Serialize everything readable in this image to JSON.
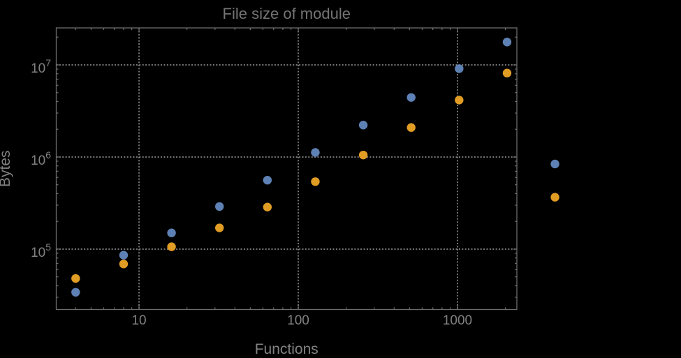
{
  "title": "File size of module",
  "colors": {
    "background": "#000000",
    "frame": "#6d6d6d",
    "grid": "#888888",
    "tick_text": "#818181",
    "title_text": "#747474",
    "series_blue": "#5e81b5",
    "series_orange": "#e19c24"
  },
  "chart_data": {
    "type": "scatter",
    "title": "File size of module",
    "xlabel": "Functions",
    "ylabel": "Bytes",
    "x_scale": "log",
    "y_scale": "log",
    "xlim": [
      3.02,
      2360
    ],
    "ylim": [
      22100,
      25200000
    ],
    "grid": true,
    "grid_style": "dotted",
    "legend": "none",
    "marker": "filled-circle",
    "x_major_ticks": [
      10,
      100,
      1000
    ],
    "x_major_tick_labels": [
      "10",
      "100",
      "1000"
    ],
    "y_major_ticks": [
      100000,
      1000000,
      10000000
    ],
    "y_major_tick_labels": [
      {
        "base": "10",
        "exponent": "5"
      },
      {
        "base": "10",
        "exponent": "6"
      },
      {
        "base": "10",
        "exponent": "7"
      }
    ],
    "x": [
      4,
      8,
      16,
      32,
      64,
      128,
      256,
      512,
      1024,
      2048,
      4096
    ],
    "series": [
      {
        "name": "series-blue",
        "color": "#5e81b5",
        "values": [
          34000,
          86000,
          150000,
          290000,
          560000,
          1120000,
          2220000,
          4430000,
          9100000,
          17700000,
          840000
        ]
      },
      {
        "name": "series-orange",
        "color": "#e19c24",
        "values": [
          48000,
          69000,
          106000,
          170000,
          286000,
          540000,
          1050000,
          2090000,
          4150000,
          8150000,
          366000
        ]
      }
    ]
  }
}
